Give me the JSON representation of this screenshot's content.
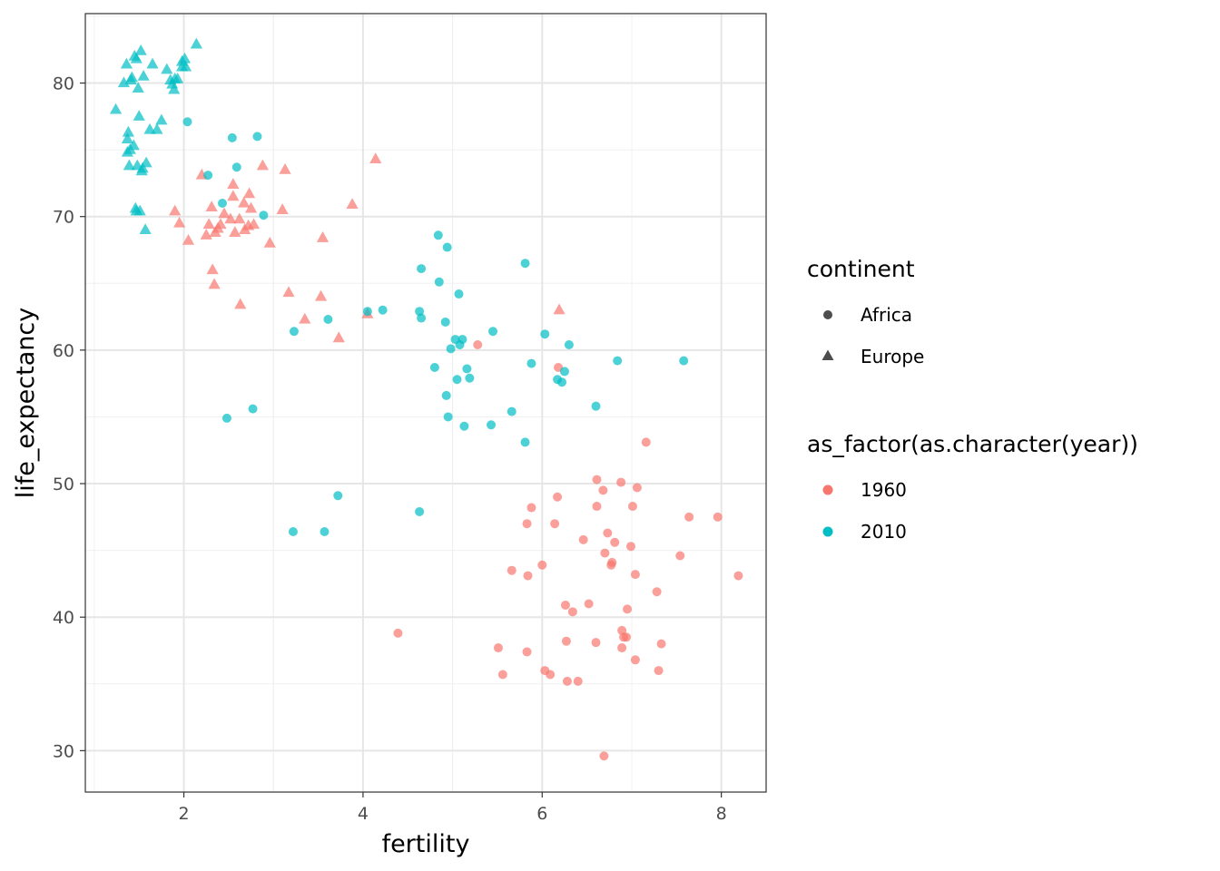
{
  "chart_data": {
    "type": "scatter",
    "xlabel": "fertility",
    "ylabel": "life_expectancy",
    "xlim": [
      0.9,
      8.5
    ],
    "ylim": [
      26.9,
      85.2
    ],
    "x_ticks": [
      2,
      4,
      6,
      8
    ],
    "x_tick_labels": [
      "2",
      "4",
      "6",
      "8"
    ],
    "y_ticks": [
      30,
      40,
      50,
      60,
      70,
      80
    ],
    "y_tick_labels": [
      "30",
      "40",
      "50",
      "60",
      "70",
      "80"
    ],
    "grid": true,
    "legend_position": "right",
    "colors": {
      "1960": "#F8766D",
      "2010": "#00BFC4",
      "legend_shape": "#4d4d4d"
    },
    "legend": {
      "shape_title": "continent",
      "shape_entries": [
        {
          "label": "Africa",
          "shape": "circle"
        },
        {
          "label": "Europe",
          "shape": "triangle"
        }
      ],
      "color_title": "as_factor(as.character(year))",
      "color_entries": [
        {
          "label": "1960",
          "color": "#F8766D"
        },
        {
          "label": "2010",
          "color": "#00BFC4"
        }
      ]
    },
    "series": [
      {
        "name": "1960",
        "continent": "Africa",
        "color": "#F8766D",
        "shape": "circle",
        "points": [
          [
            6.69,
            29.6
          ],
          [
            4.39,
            38.8
          ],
          [
            5.51,
            37.7
          ],
          [
            5.56,
            35.7
          ],
          [
            5.83,
            37.4
          ],
          [
            6.03,
            36.0
          ],
          [
            6.09,
            35.7
          ],
          [
            6.28,
            35.2
          ],
          [
            6.4,
            35.2
          ],
          [
            6.27,
            38.2
          ],
          [
            6.6,
            38.1
          ],
          [
            6.89,
            37.7
          ],
          [
            6.91,
            38.5
          ],
          [
            6.94,
            38.5
          ],
          [
            6.89,
            39.0
          ],
          [
            7.04,
            36.8
          ],
          [
            7.3,
            36.0
          ],
          [
            7.33,
            38.0
          ],
          [
            6.26,
            40.9
          ],
          [
            6.34,
            40.4
          ],
          [
            6.52,
            41.0
          ],
          [
            6.95,
            40.6
          ],
          [
            7.28,
            41.9
          ],
          [
            7.04,
            43.2
          ],
          [
            5.66,
            43.5
          ],
          [
            5.84,
            43.1
          ],
          [
            6.0,
            43.9
          ],
          [
            6.46,
            45.8
          ],
          [
            6.7,
            44.8
          ],
          [
            6.77,
            43.9
          ],
          [
            6.78,
            44.1
          ],
          [
            6.81,
            45.6
          ],
          [
            6.99,
            45.3
          ],
          [
            7.54,
            44.6
          ],
          [
            8.19,
            43.1
          ],
          [
            5.83,
            47.0
          ],
          [
            5.88,
            48.2
          ],
          [
            6.14,
            47.0
          ],
          [
            6.17,
            49.0
          ],
          [
            6.61,
            48.3
          ],
          [
            6.61,
            50.3
          ],
          [
            6.68,
            49.5
          ],
          [
            6.73,
            46.3
          ],
          [
            6.88,
            50.1
          ],
          [
            7.01,
            48.3
          ],
          [
            7.06,
            49.7
          ],
          [
            7.16,
            53.1
          ],
          [
            7.64,
            47.5
          ],
          [
            7.96,
            47.5
          ],
          [
            5.28,
            60.4
          ],
          [
            6.18,
            58.7
          ]
        ]
      },
      {
        "name": "1960",
        "continent": "Europe",
        "color": "#F8766D",
        "shape": "triangle",
        "points": [
          [
            1.9,
            70.4
          ],
          [
            1.95,
            69.5
          ],
          [
            2.05,
            68.2
          ],
          [
            2.2,
            73.1
          ],
          [
            2.25,
            68.6
          ],
          [
            2.28,
            69.4
          ],
          [
            2.31,
            70.7
          ],
          [
            2.32,
            66.0
          ],
          [
            2.34,
            64.9
          ],
          [
            2.35,
            68.8
          ],
          [
            2.38,
            69.1
          ],
          [
            2.41,
            69.4
          ],
          [
            2.45,
            70.2
          ],
          [
            2.52,
            69.8
          ],
          [
            2.55,
            71.5
          ],
          [
            2.55,
            72.4
          ],
          [
            2.57,
            68.8
          ],
          [
            2.62,
            69.8
          ],
          [
            2.63,
            63.4
          ],
          [
            2.67,
            71.0
          ],
          [
            2.68,
            69.0
          ],
          [
            2.72,
            69.3
          ],
          [
            2.73,
            71.7
          ],
          [
            2.75,
            70.6
          ],
          [
            2.78,
            69.4
          ],
          [
            2.88,
            73.8
          ],
          [
            2.96,
            68.0
          ],
          [
            3.1,
            70.5
          ],
          [
            3.13,
            73.5
          ],
          [
            3.17,
            64.3
          ],
          [
            3.35,
            62.3
          ],
          [
            3.53,
            64.0
          ],
          [
            3.55,
            68.4
          ],
          [
            3.73,
            60.9
          ],
          [
            3.88,
            70.9
          ],
          [
            4.05,
            62.7
          ],
          [
            4.14,
            74.3
          ],
          [
            6.19,
            63.0
          ]
        ]
      },
      {
        "name": "2010",
        "continent": "Africa",
        "color": "#00BFC4",
        "shape": "circle",
        "points": [
          [
            2.04,
            77.1
          ],
          [
            2.27,
            73.1
          ],
          [
            2.43,
            71.0
          ],
          [
            2.48,
            54.9
          ],
          [
            2.54,
            75.9
          ],
          [
            2.59,
            73.7
          ],
          [
            2.77,
            55.6
          ],
          [
            2.82,
            76.0
          ],
          [
            2.89,
            70.1
          ],
          [
            3.23,
            61.4
          ],
          [
            3.22,
            46.4
          ],
          [
            3.57,
            46.4
          ],
          [
            3.61,
            62.3
          ],
          [
            3.72,
            49.1
          ],
          [
            4.05,
            62.9
          ],
          [
            4.22,
            63.0
          ],
          [
            4.63,
            47.9
          ],
          [
            4.63,
            62.9
          ],
          [
            4.65,
            66.1
          ],
          [
            4.65,
            62.4
          ],
          [
            4.8,
            58.7
          ],
          [
            4.84,
            68.6
          ],
          [
            4.85,
            65.1
          ],
          [
            4.92,
            62.1
          ],
          [
            4.93,
            56.6
          ],
          [
            4.95,
            55.0
          ],
          [
            4.94,
            67.7
          ],
          [
            4.98,
            60.1
          ],
          [
            5.03,
            60.8
          ],
          [
            5.05,
            57.8
          ],
          [
            5.07,
            64.2
          ],
          [
            5.08,
            60.4
          ],
          [
            5.11,
            60.8
          ],
          [
            5.13,
            54.3
          ],
          [
            5.16,
            58.6
          ],
          [
            5.19,
            57.9
          ],
          [
            5.43,
            54.4
          ],
          [
            5.45,
            61.4
          ],
          [
            5.66,
            55.4
          ],
          [
            5.81,
            53.1
          ],
          [
            5.81,
            66.5
          ],
          [
            5.88,
            59.0
          ],
          [
            6.03,
            61.2
          ],
          [
            6.17,
            57.8
          ],
          [
            6.22,
            57.6
          ],
          [
            6.25,
            58.4
          ],
          [
            6.3,
            60.4
          ],
          [
            6.6,
            55.8
          ],
          [
            6.84,
            59.2
          ],
          [
            7.58,
            59.2
          ]
        ]
      },
      {
        "name": "2010",
        "continent": "Europe",
        "color": "#00BFC4",
        "shape": "triangle",
        "points": [
          [
            1.24,
            78.0
          ],
          [
            1.33,
            80.0
          ],
          [
            1.36,
            81.4
          ],
          [
            1.37,
            75.8
          ],
          [
            1.37,
            74.8
          ],
          [
            1.38,
            76.3
          ],
          [
            1.39,
            73.8
          ],
          [
            1.4,
            75.0
          ],
          [
            1.41,
            80.2
          ],
          [
            1.42,
            80.4
          ],
          [
            1.44,
            75.3
          ],
          [
            1.45,
            82.0
          ],
          [
            1.46,
            70.6
          ],
          [
            1.47,
            81.8
          ],
          [
            1.47,
            70.4
          ],
          [
            1.48,
            73.8
          ],
          [
            1.49,
            79.6
          ],
          [
            1.5,
            77.5
          ],
          [
            1.51,
            70.4
          ],
          [
            1.52,
            82.4
          ],
          [
            1.53,
            73.4
          ],
          [
            1.54,
            73.6
          ],
          [
            1.55,
            80.5
          ],
          [
            1.57,
            69.0
          ],
          [
            1.58,
            74.0
          ],
          [
            1.62,
            76.5
          ],
          [
            1.65,
            81.4
          ],
          [
            1.7,
            76.5
          ],
          [
            1.75,
            77.2
          ],
          [
            1.81,
            81.0
          ],
          [
            1.85,
            80.2
          ],
          [
            1.87,
            79.9
          ],
          [
            1.89,
            79.5
          ],
          [
            1.9,
            80.3
          ],
          [
            1.93,
            80.3
          ],
          [
            1.98,
            81.6
          ],
          [
            1.98,
            81.2
          ],
          [
            2.01,
            81.8
          ],
          [
            2.02,
            81.2
          ],
          [
            2.14,
            82.9
          ]
        ]
      }
    ]
  }
}
